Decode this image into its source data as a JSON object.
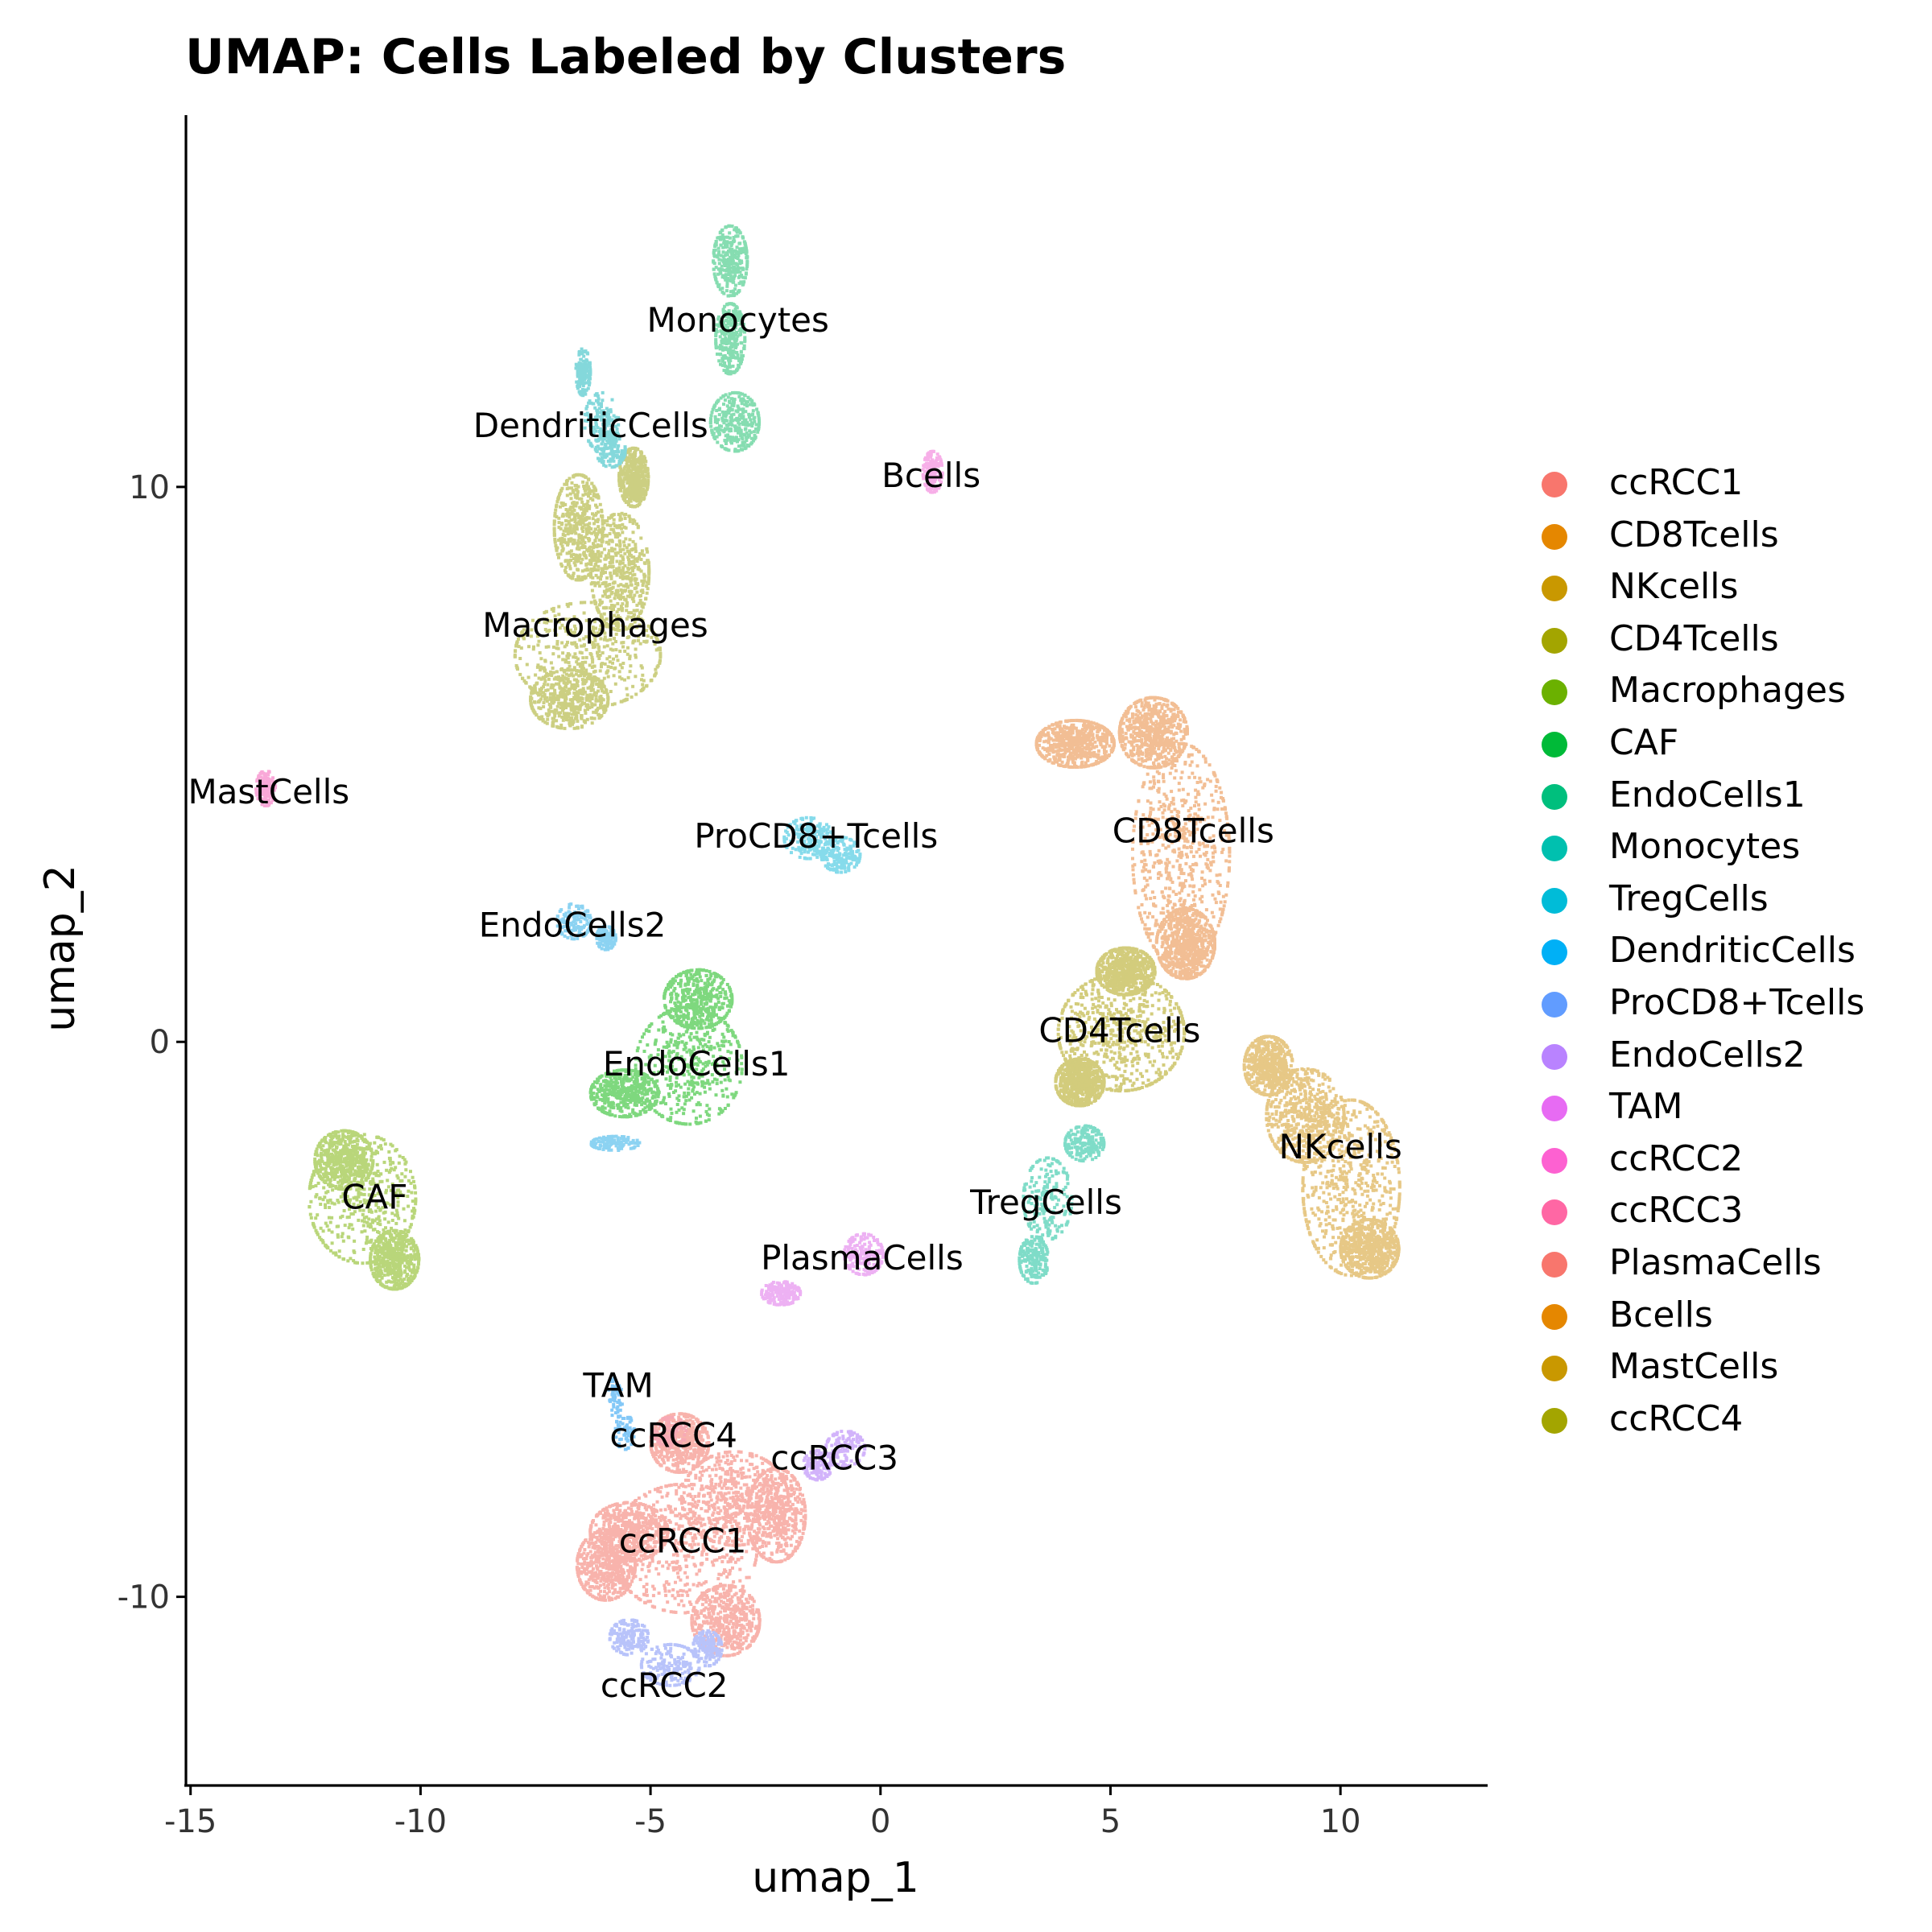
{
  "chart_data": {
    "type": "scatter",
    "title": "UMAP: Cells Labeled by Clusters",
    "xlabel": "umap_1",
    "ylabel": "umap_2",
    "xlim": [
      -15.1,
      13.2
    ],
    "ylim": [
      -13.4,
      16.7
    ],
    "xticks": [
      -15,
      -10,
      -5,
      0,
      5,
      10
    ],
    "xtick_labels": [
      "-15",
      "-10",
      "-5",
      "0",
      "5",
      "10"
    ],
    "yticks": [
      -10,
      0,
      10
    ],
    "ytick_labels": [
      "-10",
      "0",
      "10"
    ],
    "grid": false,
    "legend_position": "right",
    "series": [
      {
        "name": "ccRCC1",
        "color": "#F8766D",
        "x": [
          -4.3,
          -5.5,
          -3.2,
          -6.0,
          -3.4,
          -2.3,
          -4.4
        ],
        "y": [
          -9.1,
          -8.8,
          -8.2,
          -9.4,
          -10.4,
          -8.5,
          -7.2
        ],
        "spread": [
          [
            1.5,
            1.1
          ],
          [
            0.8,
            0.5
          ],
          [
            1.1,
            0.8
          ],
          [
            0.6,
            0.6
          ],
          [
            0.7,
            0.6
          ],
          [
            0.6,
            0.8
          ],
          [
            0.6,
            0.5
          ]
        ],
        "n": 3600
      },
      {
        "name": "CD8Tcells",
        "color": "#E58700",
        "x": [
          6.5,
          5.9,
          6.6,
          4.2
        ],
        "y": [
          3.4,
          5.6,
          1.8,
          5.4
        ],
        "spread": [
          [
            1.0,
            1.9
          ],
          [
            0.7,
            0.6
          ],
          [
            0.6,
            0.6
          ],
          [
            0.8,
            0.4
          ]
        ],
        "n": 2600
      },
      {
        "name": "NKcells",
        "color": "#C99800",
        "x": [
          10.2,
          9.2,
          10.6,
          8.4
        ],
        "y": [
          -2.6,
          -1.3,
          -3.7,
          -0.4
        ],
        "spread": [
          [
            1.0,
            1.5
          ],
          [
            0.8,
            0.8
          ],
          [
            0.6,
            0.5
          ],
          [
            0.5,
            0.5
          ]
        ],
        "n": 2400
      },
      {
        "name": "CD4Tcells",
        "color": "#A3A500",
        "x": [
          5.2,
          5.3,
          4.3
        ],
        "y": [
          0.2,
          1.3,
          -0.7
        ],
        "spread": [
          [
            1.3,
            1.0
          ],
          [
            0.6,
            0.4
          ],
          [
            0.5,
            0.4
          ]
        ],
        "n": 2000
      },
      {
        "name": "Macrophages",
        "color": "#6BB100",
        "x": [
          -6.4,
          -6.6,
          -6.8,
          -5.7,
          -5.4
        ],
        "y": [
          7.0,
          9.3,
          6.2,
          8.5,
          10.2
        ],
        "spread": [
          [
            1.5,
            0.9
          ],
          [
            0.5,
            0.9
          ],
          [
            0.8,
            0.5
          ],
          [
            0.6,
            1.0
          ],
          [
            0.3,
            0.5
          ]
        ],
        "n": 2400
      },
      {
        "name": "CAF",
        "color": "#00BA38",
        "x": [
          -11.3,
          -11.7,
          -10.6
        ],
        "y": [
          -2.8,
          -2.1,
          -3.9
        ],
        "spread": [
          [
            1.1,
            1.1
          ],
          [
            0.6,
            0.5
          ],
          [
            0.5,
            0.5
          ]
        ],
        "n": 1500
      },
      {
        "name": "EndoCells1",
        "color": "#00BF7D",
        "x": [
          -4.2,
          -5.6,
          -4.0
        ],
        "y": [
          -0.4,
          -0.9,
          0.8
        ],
        "spread": [
          [
            1.1,
            1.0
          ],
          [
            0.7,
            0.4
          ],
          [
            0.7,
            0.5
          ]
        ],
        "n": 1400
      },
      {
        "name": "Monocytes",
        "color": "#00C0AF",
        "x": [
          -3.3,
          -3.3,
          -3.2
        ],
        "y": [
          14.1,
          12.7,
          11.2
        ],
        "spread": [
          [
            0.35,
            0.6
          ],
          [
            0.3,
            0.6
          ],
          [
            0.5,
            0.5
          ]
        ],
        "n": 900
      },
      {
        "name": "TregCells",
        "color": "#00BCD8",
        "x": [
          3.6,
          3.3,
          4.4
        ],
        "y": [
          -2.8,
          -3.9,
          -1.8
        ],
        "spread": [
          [
            0.5,
            0.7
          ],
          [
            0.3,
            0.4
          ],
          [
            0.4,
            0.3
          ]
        ],
        "n": 600
      },
      {
        "name": "DendriticCells",
        "color": "#00B0F6",
        "x": [
          -6.1,
          -6.5,
          -5.9
        ],
        "y": [
          11.2,
          12.1,
          10.7
        ],
        "spread": [
          [
            0.35,
            0.5
          ],
          [
            0.15,
            0.4
          ],
          [
            0.3,
            0.3
          ]
        ],
        "n": 420
      },
      {
        "name": "ProCD8+Tcells",
        "color": "#619CFF",
        "x": [
          -1.6,
          -0.9
        ],
        "y": [
          3.7,
          3.4
        ],
        "spread": [
          [
            0.5,
            0.35
          ],
          [
            0.4,
            0.3
          ]
        ],
        "n": 380
      },
      {
        "name": "EndoCells2",
        "color": "#B983FF",
        "x": [
          -6.7,
          -6.0,
          -5.8
        ],
        "y": [
          2.2,
          1.9,
          -1.8
        ],
        "spread": [
          [
            0.35,
            0.3
          ],
          [
            0.2,
            0.2
          ],
          [
            0.5,
            0.12
          ]
        ],
        "n": 360
      },
      {
        "name": "TAM",
        "color": "#E76BF3",
        "x": [
          -5.8,
          -5.6
        ],
        "y": [
          -6.4,
          -7.0
        ],
        "spread": [
          [
            0.15,
            0.35
          ],
          [
            0.2,
            0.3
          ]
        ],
        "n": 120
      },
      {
        "name": "ccRCC2",
        "color": "#FD61D1",
        "x": [
          -4.6,
          -5.5,
          -3.8
        ],
        "y": [
          -11.2,
          -10.7,
          -10.9
        ],
        "spread": [
          [
            0.6,
            0.35
          ],
          [
            0.4,
            0.3
          ],
          [
            0.3,
            0.3
          ]
        ],
        "n": 520
      },
      {
        "name": "ccRCC3",
        "color": "#FF67A4",
        "x": [
          -0.8,
          -1.4
        ],
        "y": [
          -7.3,
          -7.6
        ],
        "spread": [
          [
            0.4,
            0.3
          ],
          [
            0.3,
            0.25
          ]
        ],
        "n": 260
      },
      {
        "name": "PlasmaCells",
        "color": "#F8766D",
        "x": [
          -0.4,
          -2.2
        ],
        "y": [
          -3.8,
          -4.5
        ],
        "spread": [
          [
            0.4,
            0.35
          ],
          [
            0.4,
            0.2
          ]
        ],
        "n": 360
      },
      {
        "name": "Bcells",
        "color": "#E58700",
        "x": [
          1.1
        ],
        "y": [
          10.3
        ],
        "spread": [
          [
            0.2,
            0.35
          ]
        ],
        "n": 170
      },
      {
        "name": "MastCells",
        "color": "#C99800",
        "x": [
          -13.4
        ],
        "y": [
          4.6
        ],
        "spread": [
          [
            0.2,
            0.3
          ]
        ],
        "n": 130
      },
      {
        "name": "ccRCC4",
        "color": "#A3A500",
        "x": [
          -4.6
        ],
        "y": [
          -7.0
        ],
        "spread": [
          [
            0.35,
            0.25
          ]
        ],
        "n": 90
      }
    ],
    "point_colors": {
      "ccRCC1": "#F8B3AC",
      "CD8Tcells": "#F2BE94",
      "NKcells": "#E7C886",
      "CD4Tcells": "#D3CC7C",
      "Macrophages": "#CCCF82",
      "CAF": "#B9D67A",
      "EndoCells1": "#7ED87E",
      "Monocytes": "#86DDB1",
      "TregCells": "#7FDCC8",
      "DendriticCells": "#84D8DB",
      "ProCD8+Tcells": "#86DBEB",
      "EndoCells2": "#8CD3F2",
      "TAM": "#83C8F7",
      "ccRCC2": "#B8C3FA",
      "ccRCC3": "#D2B3FB",
      "PlasmaCells": "#EDB1F3",
      "Bcells": "#F7AFE8",
      "MastCells": "#F9A8D8",
      "ccRCC4": "#F7A9B5"
    },
    "cluster_labels": [
      {
        "text": "Monocytes",
        "x": -3.1,
        "y": 13.0
      },
      {
        "text": "DendriticCells",
        "x": -6.3,
        "y": 11.1
      },
      {
        "text": "Bcells",
        "x": 1.1,
        "y": 10.2
      },
      {
        "text": "Macrophages",
        "x": -6.2,
        "y": 7.5
      },
      {
        "text": "MastCells",
        "x": -13.3,
        "y": 4.5
      },
      {
        "text": "ProCD8+Tcells",
        "x": -1.4,
        "y": 3.7
      },
      {
        "text": "CD8Tcells",
        "x": 6.8,
        "y": 3.8
      },
      {
        "text": "EndoCells2",
        "x": -6.7,
        "y": 2.1
      },
      {
        "text": "CD4Tcells",
        "x": 5.2,
        "y": 0.2
      },
      {
        "text": "EndoCells1",
        "x": -4.0,
        "y": -0.4
      },
      {
        "text": "NKcells",
        "x": 10.0,
        "y": -1.9
      },
      {
        "text": "CAF",
        "x": -11.0,
        "y": -2.8
      },
      {
        "text": "TregCells",
        "x": 3.6,
        "y": -2.9
      },
      {
        "text": "PlasmaCells",
        "x": -0.4,
        "y": -3.9
      },
      {
        "text": "TAM",
        "x": -5.7,
        "y": -6.2
      },
      {
        "text": "ccRCC4",
        "x": -4.5,
        "y": -7.1
      },
      {
        "text": "ccRCC3",
        "x": -1.0,
        "y": -7.5
      },
      {
        "text": "ccRCC1",
        "x": -4.3,
        "y": -9.0
      },
      {
        "text": "ccRCC2",
        "x": -4.7,
        "y": -11.6
      }
    ]
  },
  "legend": {
    "items": [
      {
        "label": "ccRCC1",
        "color": "#F8766D"
      },
      {
        "label": "CD8Tcells",
        "color": "#E58700"
      },
      {
        "label": "NKcells",
        "color": "#C99800"
      },
      {
        "label": "CD4Tcells",
        "color": "#A3A500"
      },
      {
        "label": "Macrophages",
        "color": "#6BB100"
      },
      {
        "label": "CAF",
        "color": "#00BA38"
      },
      {
        "label": "EndoCells1",
        "color": "#00BF7D"
      },
      {
        "label": "Monocytes",
        "color": "#00C0AF"
      },
      {
        "label": "TregCells",
        "color": "#00BCD8"
      },
      {
        "label": "DendriticCells",
        "color": "#00B0F6"
      },
      {
        "label": "ProCD8+Tcells",
        "color": "#619CFF"
      },
      {
        "label": "EndoCells2",
        "color": "#B983FF"
      },
      {
        "label": "TAM",
        "color": "#E76BF3"
      },
      {
        "label": "ccRCC2",
        "color": "#FD61D1"
      },
      {
        "label": "ccRCC3",
        "color": "#FF67A4"
      },
      {
        "label": "PlasmaCells",
        "color": "#F8766D"
      },
      {
        "label": "Bcells",
        "color": "#E58700"
      },
      {
        "label": "MastCells",
        "color": "#C99800"
      },
      {
        "label": "ccRCC4",
        "color": "#A3A500"
      }
    ]
  }
}
